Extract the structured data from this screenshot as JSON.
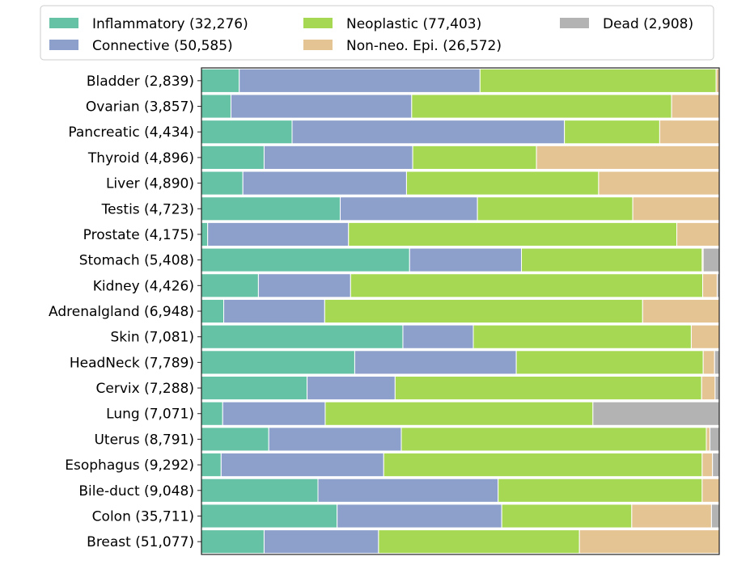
{
  "chart_data": {
    "type": "bar",
    "orientation": "horizontal",
    "stacked": true,
    "normalized": true,
    "xlim": [
      0,
      1
    ],
    "grid": false,
    "legend_position": "top",
    "categories": [
      "Bladder (2,839)",
      "Ovarian (3,857)",
      "Pancreatic (4,434)",
      "Thyroid (4,896)",
      "Liver (4,890)",
      "Testis (4,723)",
      "Prostate (4,175)",
      "Stomach (5,408)",
      "Kidney (4,426)",
      "Adrenalgland (6,948)",
      "Skin (7,081)",
      "HeadNeck (7,789)",
      "Cervix (7,288)",
      "Lung (7,071)",
      "Uterus (8,791)",
      "Esophagus (9,292)",
      "Bile-duct (9,048)",
      "Colon (35,711)",
      "Breast (51,077)"
    ],
    "series": [
      {
        "name": "Inflammatory (32,276)",
        "color": "#66c2a5",
        "values": [
          0.073,
          0.057,
          0.175,
          0.121,
          0.08,
          0.268,
          0.012,
          0.402,
          0.11,
          0.043,
          0.389,
          0.296,
          0.204,
          0.041,
          0.13,
          0.038,
          0.225,
          0.262,
          0.121
        ]
      },
      {
        "name": "Connective (50,585)",
        "color": "#8da0cb",
        "values": [
          0.465,
          0.349,
          0.526,
          0.287,
          0.316,
          0.265,
          0.272,
          0.216,
          0.178,
          0.195,
          0.136,
          0.312,
          0.17,
          0.198,
          0.256,
          0.314,
          0.348,
          0.318,
          0.221
        ]
      },
      {
        "name": "Neoplastic (77,403)",
        "color": "#a6d854",
        "values": [
          0.456,
          0.502,
          0.184,
          0.239,
          0.371,
          0.3,
          0.634,
          0.349,
          0.68,
          0.614,
          0.421,
          0.361,
          0.592,
          0.517,
          0.589,
          0.615,
          0.394,
          0.251,
          0.388
        ]
      },
      {
        "name": "Non-neo. Epi. (26,572)",
        "color": "#e5c494",
        "values": [
          0.006,
          0.092,
          0.115,
          0.353,
          0.233,
          0.167,
          0.082,
          0.002,
          0.028,
          0.148,
          0.054,
          0.022,
          0.026,
          0.0,
          0.007,
          0.02,
          0.033,
          0.154,
          0.27
        ]
      },
      {
        "name": "Dead (2,908)",
        "color": "#b3b3b3",
        "values": [
          0.0,
          0.0,
          0.0,
          0.0,
          0.0,
          0.0,
          0.0,
          0.031,
          0.004,
          0.0,
          0.0,
          0.009,
          0.008,
          0.244,
          0.018,
          0.013,
          0.0,
          0.015,
          0.0
        ]
      }
    ]
  }
}
